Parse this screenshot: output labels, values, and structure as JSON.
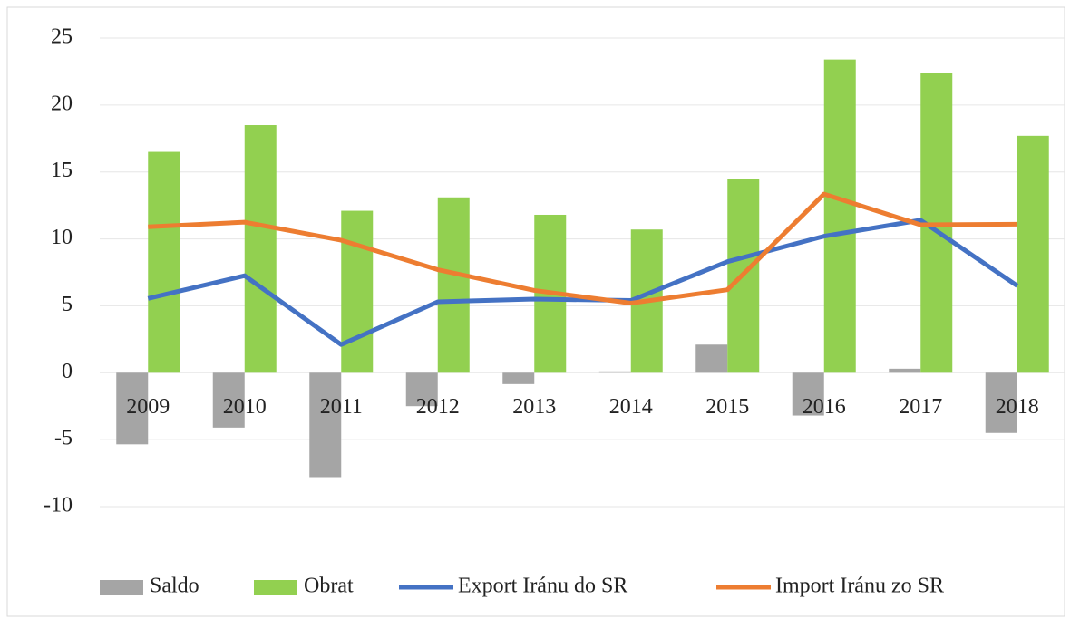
{
  "chart_data": {
    "type": "bar_line",
    "categories": [
      "2009",
      "2010",
      "2011",
      "2012",
      "2013",
      "2014",
      "2015",
      "2016",
      "2017",
      "2018"
    ],
    "series": [
      {
        "name": "Saldo",
        "type": "bar",
        "color": "#a5a5a5",
        "values": [
          -5.35,
          -4.1,
          -7.8,
          -2.5,
          -0.85,
          0.1,
          2.1,
          -3.2,
          0.3,
          -4.5
        ]
      },
      {
        "name": "Obrat",
        "type": "bar",
        "color": "#92d050",
        "values": [
          16.5,
          18.5,
          12.1,
          13.1,
          11.8,
          10.7,
          14.5,
          23.4,
          22.4,
          17.7
        ]
      },
      {
        "name": "Export Iránu do SR",
        "type": "line",
        "color": "#4472c4",
        "values": [
          5.55,
          7.25,
          2.1,
          5.3,
          5.5,
          5.4,
          8.3,
          10.2,
          11.4,
          6.5
        ]
      },
      {
        "name": "Import Iránu zo SR",
        "type": "line",
        "color": "#ed7d31",
        "values": [
          10.9,
          11.25,
          9.9,
          7.7,
          6.15,
          5.2,
          6.2,
          13.35,
          11.05,
          11.1
        ]
      }
    ],
    "ylim": [
      -10,
      25
    ],
    "yticks": [
      -10,
      -5,
      0,
      5,
      10,
      15,
      20,
      25
    ],
    "grid": true,
    "legend": "bottom"
  }
}
